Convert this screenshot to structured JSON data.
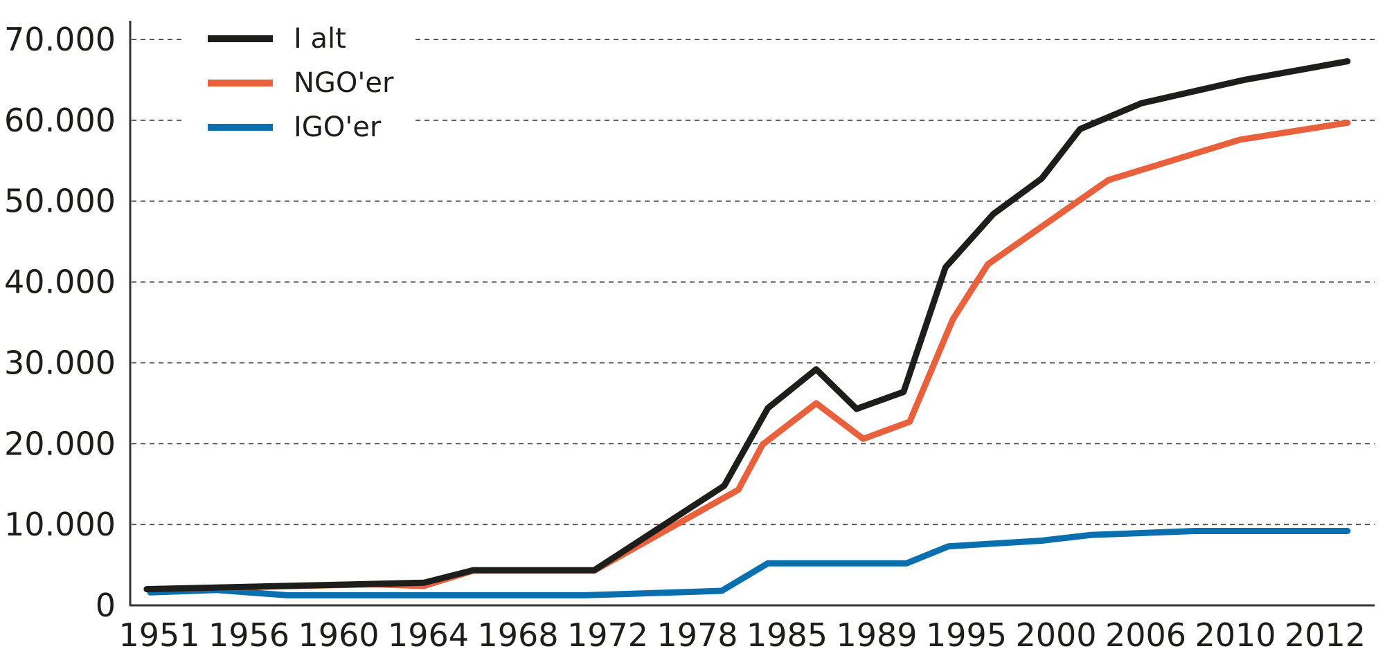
{
  "chart_data": {
    "type": "line",
    "title": "",
    "xlabel": "",
    "ylabel": "",
    "x_tick_labels": [
      "1951",
      "1956",
      "1960",
      "1964",
      "1968",
      "1972",
      "1978",
      "1985",
      "1989",
      "1995",
      "2000",
      "2006",
      "2010",
      "2012"
    ],
    "y_ticks": [
      0,
      10000,
      20000,
      30000,
      40000,
      50000,
      60000,
      70000
    ],
    "y_tick_labels": [
      "0",
      "10.000",
      "20.000",
      "30.000",
      "40.000",
      "50.000",
      "60.000",
      "70.000"
    ],
    "ylim": [
      0,
      70000
    ],
    "grid": "horizontal dashed",
    "legend_position": "top-left",
    "series": [
      {
        "name": "I alt",
        "color": "#1d1d1b",
        "points": [
          [
            1950.3,
            2000
          ],
          [
            1963.8,
            2800
          ],
          [
            1966,
            4350
          ],
          [
            1971.4,
            4350
          ],
          [
            1980.1,
            14800
          ],
          [
            1983.5,
            24400
          ],
          [
            1986.3,
            29200
          ],
          [
            1988.1,
            24300
          ],
          [
            1990.8,
            26400
          ],
          [
            1993.6,
            41800
          ],
          [
            1996.5,
            48400
          ],
          [
            1999.2,
            52800
          ],
          [
            2001.6,
            58900
          ],
          [
            2005.7,
            62100
          ],
          [
            2010.2,
            65000
          ],
          [
            2012.5,
            67300
          ]
        ]
      },
      {
        "name": "NGO'er",
        "color": "#e8603c",
        "points": [
          [
            1950.3,
            2000
          ],
          [
            1961.6,
            2600
          ],
          [
            1963.8,
            2400
          ],
          [
            1966,
            4300
          ],
          [
            1971.4,
            4300
          ],
          [
            1981.2,
            14300
          ],
          [
            1983.1,
            19900
          ],
          [
            1986.3,
            25000
          ],
          [
            1988.4,
            20600
          ],
          [
            1991.2,
            22700
          ],
          [
            1994.1,
            35400
          ],
          [
            1996.2,
            42200
          ],
          [
            2003.5,
            52600
          ],
          [
            2010.1,
            57600
          ],
          [
            2012.5,
            59700
          ]
        ]
      },
      {
        "name": "IGO'er",
        "color": "#0a6fae",
        "points": [
          [
            1950.5,
            1600
          ],
          [
            1954.2,
            1900
          ],
          [
            1957.7,
            1250
          ],
          [
            1971,
            1250
          ],
          [
            1979.9,
            1800
          ],
          [
            1983.5,
            5200
          ],
          [
            1991,
            5200
          ],
          [
            1993.8,
            7300
          ],
          [
            1999.2,
            8000
          ],
          [
            2002.3,
            8700
          ],
          [
            2008.2,
            9200
          ],
          [
            2012.5,
            9200
          ]
        ]
      }
    ]
  }
}
